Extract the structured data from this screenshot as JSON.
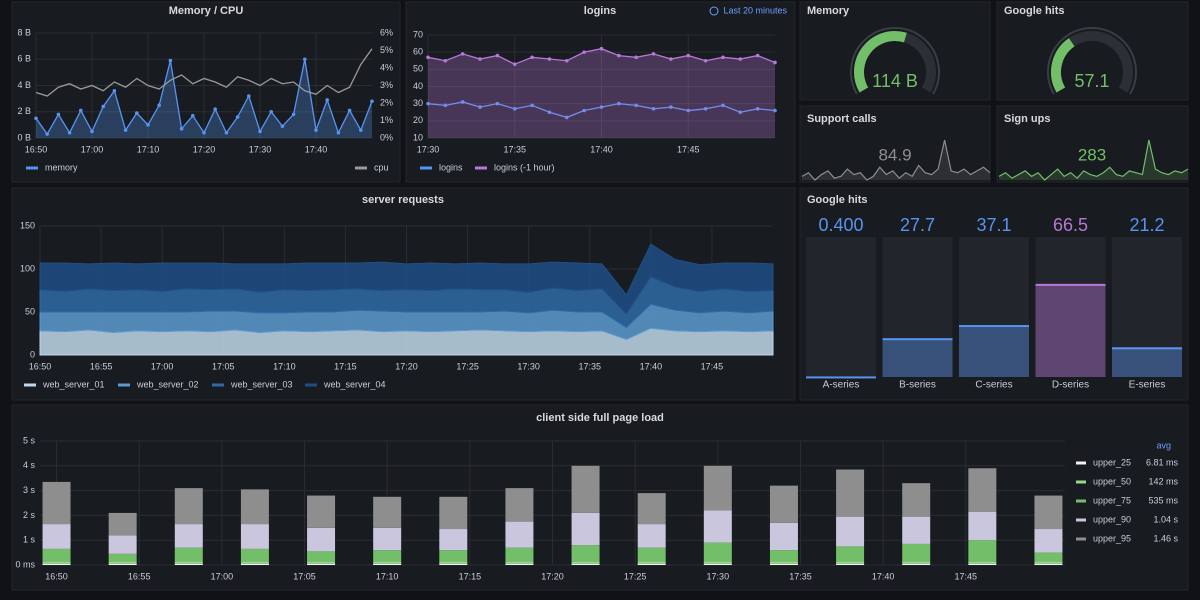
{
  "chart_data": [
    {
      "type": "line",
      "title": "Memory / CPU",
      "x": [
        "16:50",
        "16:52",
        "16:54",
        "16:56",
        "16:58",
        "17:00",
        "17:02",
        "17:04",
        "17:06",
        "17:08",
        "17:10",
        "17:12",
        "17:14",
        "17:16",
        "17:18",
        "17:20",
        "17:22",
        "17:24",
        "17:26",
        "17:28",
        "17:30",
        "17:32",
        "17:34",
        "17:36",
        "17:38",
        "17:40",
        "17:42",
        "17:44",
        "17:46",
        "17:48",
        "17:50"
      ],
      "xlim": [
        "16:50",
        "17:50"
      ],
      "xticks": [
        "16:50",
        "17:00",
        "17:10",
        "17:20",
        "17:30",
        "17:40"
      ],
      "ylim": [
        0,
        8
      ],
      "yticks": [
        {
          "value": 0,
          "label": "0 B"
        },
        {
          "value": 2,
          "label": "2 B"
        },
        {
          "value": 4,
          "label": "4 B"
        },
        {
          "value": 6,
          "label": "6 B"
        },
        {
          "value": 8,
          "label": "8 B"
        }
      ],
      "y2lim": [
        0,
        6
      ],
      "y2ticks": [
        {
          "value": 0,
          "label": "0%"
        },
        {
          "value": 1,
          "label": "1%"
        },
        {
          "value": 2,
          "label": "2%"
        },
        {
          "value": 3,
          "label": "3%"
        },
        {
          "value": 4,
          "label": "4%"
        },
        {
          "value": 5,
          "label": "5%"
        },
        {
          "value": 6,
          "label": "6%"
        }
      ],
      "grid": true,
      "series": [
        {
          "name": "memory",
          "color": "#5794f2",
          "fill": true,
          "points": true,
          "values": [
            1.5,
            0.3,
            1.8,
            0.4,
            2.1,
            0.5,
            2.4,
            3.6,
            0.6,
            1.9,
            1.0,
            2.5,
            5.9,
            0.7,
            1.7,
            0.4,
            2.2,
            0.4,
            1.6,
            3.2,
            0.5,
            2.0,
            0.9,
            1.8,
            6.0,
            0.6,
            2.9,
            0.4,
            2.1,
            0.6,
            2.8
          ]
        },
        {
          "name": "cpu",
          "color": "#9a9a9a",
          "axis": "y2",
          "values": [
            2.6,
            2.4,
            2.9,
            3.1,
            2.8,
            3.0,
            2.7,
            3.2,
            2.9,
            3.4,
            3.0,
            2.8,
            3.3,
            3.6,
            3.1,
            3.4,
            3.2,
            2.9,
            3.5,
            3.3,
            3.0,
            3.4,
            3.1,
            3.2,
            2.7,
            2.5,
            3.0,
            2.6,
            2.9,
            4.2,
            5.1
          ]
        }
      ]
    },
    {
      "type": "line",
      "title": "logins",
      "time_range": "Last 20 minutes",
      "x": [
        "17:30",
        "17:31",
        "17:32",
        "17:33",
        "17:34",
        "17:35",
        "17:36",
        "17:37",
        "17:38",
        "17:39",
        "17:40",
        "17:41",
        "17:42",
        "17:43",
        "17:44",
        "17:45",
        "17:46",
        "17:47",
        "17:48",
        "17:49",
        "17:50"
      ],
      "xlim": [
        "17:30",
        "17:50"
      ],
      "xticks": [
        "17:30",
        "17:35",
        "17:40",
        "17:45"
      ],
      "ylim": [
        10,
        70
      ],
      "yticks": [
        10,
        20,
        30,
        40,
        50,
        60,
        70
      ],
      "grid": true,
      "series": [
        {
          "name": "logins",
          "color": "#5794f2",
          "points": true,
          "values": [
            30,
            29,
            31,
            28,
            30,
            27,
            29,
            25,
            22,
            26,
            28,
            30,
            29,
            27,
            28,
            26,
            27,
            29,
            25,
            27,
            26
          ]
        },
        {
          "name": "logins (-1 hour)",
          "color": "#b877d9",
          "fill": true,
          "points": true,
          "values": [
            57,
            55,
            59,
            56,
            58,
            53,
            57,
            56,
            55,
            60,
            62,
            58,
            57,
            59,
            56,
            58,
            55,
            57,
            56,
            58,
            54
          ]
        }
      ]
    },
    {
      "type": "gauge",
      "title": "Memory",
      "value": 114,
      "value_label": "114 B",
      "ylim": [
        0,
        200
      ],
      "color": "#73bf69"
    },
    {
      "type": "gauge",
      "title": "Google hits",
      "value": 57.1,
      "ylim": [
        0,
        160
      ],
      "color": "#73bf69"
    },
    {
      "type": "stat",
      "title": "Support calls",
      "value": 84.9,
      "color": "#8e8e8e",
      "values": [
        60,
        62,
        58,
        61,
        63,
        59,
        60,
        64,
        61,
        62,
        58,
        60,
        65,
        61,
        63,
        59,
        62,
        60,
        66,
        62,
        61,
        64,
        80,
        63,
        62,
        64,
        61,
        63,
        65,
        62
      ]
    },
    {
      "type": "stat",
      "title": "Sign ups",
      "value": 283,
      "color": "#73bf69",
      "values": [
        50,
        52,
        49,
        51,
        53,
        50,
        52,
        48,
        51,
        54,
        50,
        52,
        49,
        53,
        51,
        50,
        52,
        55,
        51,
        50,
        53,
        52,
        51,
        70,
        54,
        52,
        51,
        53,
        52,
        54
      ]
    },
    {
      "type": "area",
      "title": "server requests",
      "stacked": true,
      "x": [
        "16:50",
        "16:52",
        "16:54",
        "16:56",
        "16:58",
        "17:00",
        "17:02",
        "17:04",
        "17:06",
        "17:08",
        "17:10",
        "17:12",
        "17:14",
        "17:16",
        "17:18",
        "17:20",
        "17:22",
        "17:24",
        "17:26",
        "17:28",
        "17:30",
        "17:32",
        "17:34",
        "17:36",
        "17:38",
        "17:40",
        "17:42",
        "17:44",
        "17:46",
        "17:48",
        "17:50"
      ],
      "xlim": [
        "16:50",
        "17:50"
      ],
      "xticks": [
        "16:50",
        "16:55",
        "17:00",
        "17:05",
        "17:10",
        "17:15",
        "17:20",
        "17:25",
        "17:30",
        "17:35",
        "17:40",
        "17:45"
      ],
      "ylim": [
        0,
        150
      ],
      "yticks": [
        0,
        50,
        100,
        150
      ],
      "grid": true,
      "series": [
        {
          "name": "web_server_01",
          "color": "#c0d8ea",
          "values": [
            28,
            27,
            29,
            26,
            28,
            27,
            28,
            27,
            29,
            26,
            28,
            27,
            28,
            29,
            27,
            28,
            27,
            28,
            29,
            28,
            27,
            28,
            27,
            28,
            18,
            31,
            28,
            27,
            28,
            27,
            28
          ]
        },
        {
          "name": "web_server_02",
          "color": "#5c9bd1",
          "values": [
            22,
            23,
            21,
            24,
            22,
            23,
            22,
            24,
            22,
            23,
            21,
            23,
            22,
            23,
            24,
            22,
            23,
            22,
            21,
            23,
            22,
            24,
            23,
            22,
            14,
            28,
            24,
            22,
            23,
            22,
            23
          ]
        },
        {
          "name": "web_server_03",
          "color": "#2f6aa6",
          "values": [
            26,
            24,
            27,
            25,
            26,
            24,
            27,
            25,
            26,
            24,
            27,
            25,
            26,
            25,
            24,
            26,
            25,
            27,
            26,
            25,
            24,
            26,
            25,
            27,
            16,
            32,
            27,
            25,
            26,
            25,
            24
          ]
        },
        {
          "name": "web_server_04",
          "color": "#1f4e86",
          "values": [
            31,
            33,
            29,
            32,
            30,
            33,
            30,
            31,
            29,
            33,
            30,
            32,
            31,
            30,
            33,
            30,
            32,
            29,
            31,
            30,
            33,
            30,
            32,
            29,
            22,
            38,
            32,
            31,
            30,
            33,
            31
          ]
        }
      ]
    },
    {
      "type": "bargauge",
      "title": "Google hits",
      "categories": [
        "A-series",
        "B-series",
        "C-series",
        "D-series",
        "E-series"
      ],
      "values": [
        0.4,
        27.7,
        37.1,
        66.5,
        21.2
      ],
      "value_labels": [
        "0.400",
        "27.7",
        "37.1",
        "66.5",
        "21.2"
      ],
      "colors": [
        "#5794f2",
        "#5794f2",
        "#5794f2",
        "#b877d9",
        "#5794f2"
      ],
      "ylim": [
        0,
        100
      ]
    },
    {
      "type": "bar",
      "title": "client side full page load",
      "stacked": true,
      "legend_header": "avg",
      "x": [
        "16:50",
        "16:54",
        "16:58",
        "17:02",
        "17:06",
        "17:10",
        "17:14",
        "17:18",
        "17:22",
        "17:26",
        "17:30",
        "17:34",
        "17:38",
        "17:42",
        "17:46",
        "17:50"
      ],
      "xlim": [
        "16:49",
        "17:51"
      ],
      "xticks": [
        "16:50",
        "16:55",
        "17:00",
        "17:05",
        "17:10",
        "17:15",
        "17:20",
        "17:25",
        "17:30",
        "17:35",
        "17:40",
        "17:45"
      ],
      "ylim": [
        0,
        5
      ],
      "yticks": [
        {
          "value": 0,
          "label": "0 ms"
        },
        {
          "value": 1,
          "label": "1 s"
        },
        {
          "value": 2,
          "label": "2 s"
        },
        {
          "value": 3,
          "label": "3 s"
        },
        {
          "value": 4,
          "label": "4 s"
        },
        {
          "value": 5,
          "label": "5 s"
        }
      ],
      "grid": true,
      "series": [
        {
          "name": "upper_25",
          "avg": "6.81 ms",
          "color": "#f2f2f2",
          "values": [
            0.05,
            0.05,
            0.05,
            0.05,
            0.05,
            0.05,
            0.05,
            0.05,
            0.05,
            0.05,
            0.05,
            0.05,
            0.05,
            0.05,
            0.05,
            0.05
          ]
        },
        {
          "name": "upper_50",
          "avg": "142 ms",
          "color": "#96d98d",
          "values": [
            0.1,
            0.1,
            0.1,
            0.1,
            0.1,
            0.1,
            0.1,
            0.1,
            0.1,
            0.1,
            0.1,
            0.1,
            0.1,
            0.1,
            0.1,
            0.1
          ]
        },
        {
          "name": "upper_75",
          "avg": "535 ms",
          "color": "#73bf69",
          "values": [
            0.5,
            0.3,
            0.55,
            0.5,
            0.4,
            0.45,
            0.45,
            0.55,
            0.65,
            0.55,
            0.75,
            0.45,
            0.6,
            0.7,
            0.85,
            0.35
          ]
        },
        {
          "name": "upper_90",
          "avg": "1.04 s",
          "color": "#c9c6dd",
          "values": [
            1.0,
            0.75,
            0.95,
            1.0,
            0.95,
            0.9,
            0.85,
            1.05,
            1.3,
            0.95,
            1.3,
            1.1,
            1.2,
            1.1,
            1.15,
            0.95
          ]
        },
        {
          "name": "upper_95",
          "avg": "1.46 s",
          "color": "#8e8e8e",
          "values": [
            1.7,
            0.9,
            1.45,
            1.4,
            1.3,
            1.25,
            1.3,
            1.35,
            1.9,
            1.25,
            1.8,
            1.5,
            1.9,
            1.35,
            1.75,
            1.35
          ]
        }
      ]
    }
  ]
}
